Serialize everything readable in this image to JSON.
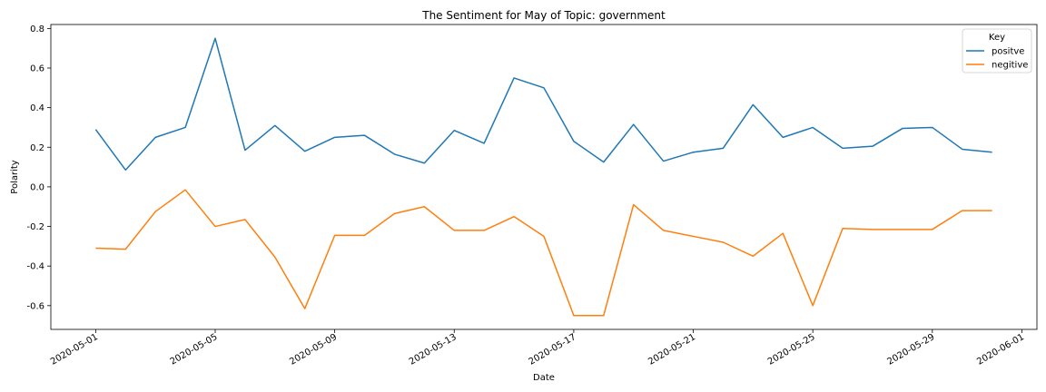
{
  "chart_data": {
    "type": "line",
    "title": "The Sentiment for May of Topic: government",
    "xlabel": "Date",
    "ylabel": "Polarity",
    "x": [
      "2020-05-01",
      "2020-05-02",
      "2020-05-03",
      "2020-05-04",
      "2020-05-05",
      "2020-05-06",
      "2020-05-07",
      "2020-05-08",
      "2020-05-09",
      "2020-05-10",
      "2020-05-11",
      "2020-05-12",
      "2020-05-13",
      "2020-05-14",
      "2020-05-15",
      "2020-05-16",
      "2020-05-17",
      "2020-05-18",
      "2020-05-19",
      "2020-05-20",
      "2020-05-21",
      "2020-05-22",
      "2020-05-23",
      "2020-05-24",
      "2020-05-25",
      "2020-05-26",
      "2020-05-27",
      "2020-05-28",
      "2020-05-29",
      "2020-05-30",
      "2020-05-31"
    ],
    "xlim": [
      "2020-04-29T12:00",
      "2020-06-01T12:00"
    ],
    "ylim": [
      -0.72,
      0.82
    ],
    "x_ticks": [
      "2020-05-01",
      "2020-05-05",
      "2020-05-09",
      "2020-05-13",
      "2020-05-17",
      "2020-05-21",
      "2020-05-25",
      "2020-05-29",
      "2020-06-01"
    ],
    "y_ticks": [
      "0.8",
      "0.6",
      "0.4",
      "0.2",
      "0.0",
      "-0.2",
      "-0.4",
      "-0.6"
    ],
    "grid": false,
    "legend": {
      "title": "Key",
      "position": "top-right"
    },
    "series": [
      {
        "name": "positve",
        "color": "#1f77b4",
        "values": [
          0.29,
          0.085,
          0.25,
          0.3,
          0.75,
          0.185,
          0.31,
          0.18,
          0.25,
          0.26,
          0.165,
          0.12,
          0.285,
          0.22,
          0.55,
          0.5,
          0.23,
          0.125,
          0.315,
          0.13,
          0.175,
          0.195,
          0.415,
          0.25,
          0.3,
          0.195,
          0.205,
          0.295,
          0.3,
          0.19,
          0.175
        ]
      },
      {
        "name": "negitive",
        "color": "#ff7f0e",
        "values": [
          -0.31,
          -0.315,
          -0.125,
          -0.015,
          -0.2,
          -0.165,
          -0.355,
          -0.615,
          -0.245,
          -0.245,
          -0.135,
          -0.1,
          -0.22,
          -0.22,
          -0.15,
          -0.25,
          -0.65,
          -0.65,
          -0.09,
          -0.22,
          -0.25,
          -0.28,
          -0.35,
          -0.235,
          -0.6,
          -0.21,
          -0.215,
          -0.215,
          -0.215,
          -0.12,
          -0.12
        ]
      }
    ]
  }
}
